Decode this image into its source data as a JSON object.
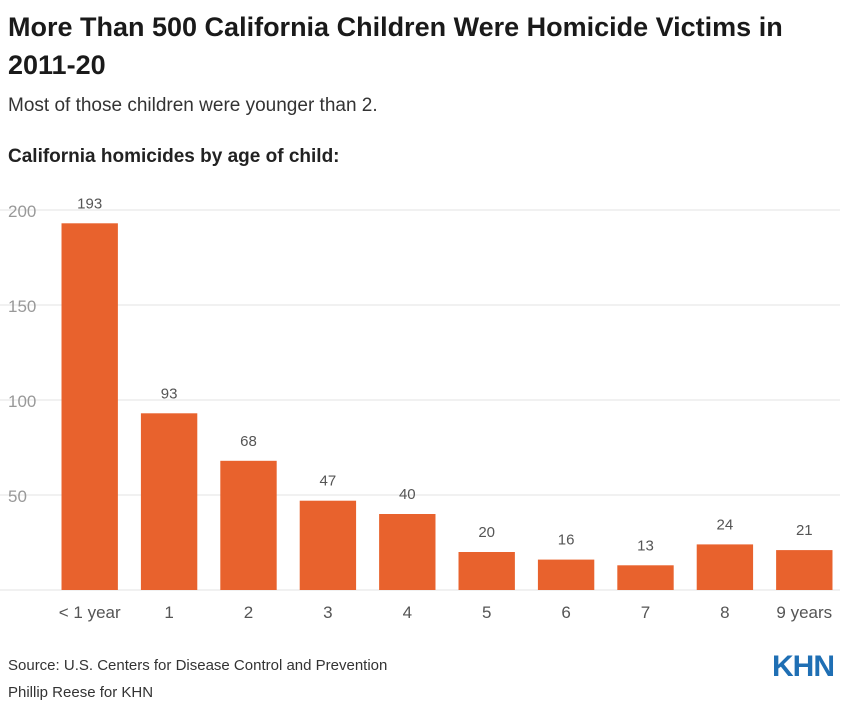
{
  "title": "More Than 500 California Children Were Homicide Victims in 2011-20",
  "subtitle": "Most of those children were younger than 2.",
  "chart_heading": "California homicides by age of child:",
  "source": "Source: U.S. Centers for Disease Control and Prevention",
  "credit": "Phillip Reese for KHN",
  "logo": "KHN",
  "colors": {
    "bar": "#e8622d",
    "grid": "#e3e3e3",
    "tick": "#999999",
    "label": "#555555",
    "logo": "#1f6fb4"
  },
  "chart_data": {
    "type": "bar",
    "title": "California homicides by age of child:",
    "categories": [
      "< 1 year",
      "1",
      "2",
      "3",
      "4",
      "5",
      "6",
      "7",
      "8",
      "9 years"
    ],
    "values": [
      193,
      93,
      68,
      47,
      40,
      20,
      16,
      13,
      24,
      21
    ],
    "ylim": [
      0,
      200
    ],
    "yticks": [
      50,
      100,
      150,
      200
    ],
    "grid": true,
    "data_labels": true
  }
}
